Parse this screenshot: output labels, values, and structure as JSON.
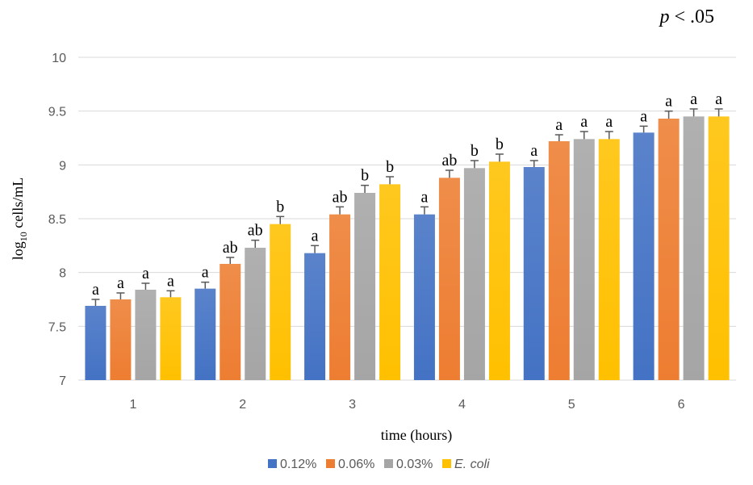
{
  "chart_data": {
    "type": "bar",
    "annotation": {
      "italic": "p",
      "rest": " < .05"
    },
    "xlabel": "time (hours)",
    "ylabel": {
      "base": "log",
      "sub": "10",
      "rest": " cells/mL"
    },
    "categories": [
      "1",
      "2",
      "3",
      "4",
      "5",
      "6"
    ],
    "ylim": [
      7,
      10
    ],
    "yticks": [
      "7",
      "7.5",
      "8",
      "8.5",
      "9",
      "9.5",
      "10"
    ],
    "grid": true,
    "legend_position": "bottom",
    "series": [
      {
        "name": "0.12%",
        "color": "#4472C4",
        "values": [
          7.69,
          7.85,
          8.18,
          8.54,
          8.98,
          9.3
        ],
        "errors": [
          0.06,
          0.06,
          0.07,
          0.07,
          0.06,
          0.06
        ],
        "letters": [
          "a",
          "a",
          "a",
          "a",
          "a",
          "a"
        ]
      },
      {
        "name": "0.06%",
        "color": "#ED7D31",
        "values": [
          7.75,
          8.08,
          8.54,
          8.88,
          9.22,
          9.43
        ],
        "errors": [
          0.06,
          0.06,
          0.07,
          0.07,
          0.06,
          0.07
        ],
        "letters": [
          "a",
          "ab",
          "ab",
          "ab",
          "a",
          "a"
        ]
      },
      {
        "name": "0.03%",
        "color": "#A5A5A5",
        "values": [
          7.84,
          8.23,
          8.74,
          8.97,
          9.24,
          9.45
        ],
        "errors": [
          0.06,
          0.07,
          0.07,
          0.07,
          0.07,
          0.07
        ],
        "letters": [
          "a",
          "ab",
          "b",
          "b",
          "a",
          "a"
        ]
      },
      {
        "name": "E. coli",
        "italic": true,
        "color": "#FFC000",
        "values": [
          7.77,
          8.45,
          8.82,
          9.03,
          9.24,
          9.45
        ],
        "errors": [
          0.06,
          0.07,
          0.07,
          0.07,
          0.07,
          0.07
        ],
        "letters": [
          "a",
          "b",
          "b",
          "b",
          "a",
          "a"
        ]
      }
    ]
  }
}
